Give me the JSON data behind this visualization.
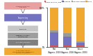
{
  "bars": [
    "Past\n(Approx. 2010)",
    "Now\n(Approx. 2016)",
    "Future\n(Approx. 2030)"
  ],
  "segments": {
    "Sample collection / Prep": {
      "values": [
        5,
        5,
        5
      ],
      "color": "#d9534f"
    },
    "Sequencing": {
      "values": [
        32,
        22,
        5
      ],
      "color": "#7272c0"
    },
    "Data management": {
      "values": [
        5,
        8,
        5
      ],
      "color": "#999999"
    },
    "Analysis": {
      "values": [
        58,
        65,
        85
      ],
      "color": "#f0a830"
    }
  },
  "ylim": [
    0,
    100
  ],
  "ytick_top": "100%",
  "ytick_bot": "0%",
  "legend_labels": [
    "Sample collection / Prep",
    "Sequencing",
    "Data management",
    "Analysis"
  ],
  "legend_colors": [
    "#d9534f",
    "#7272c0",
    "#999999",
    "#f0a830"
  ],
  "background_color": "#ffffff",
  "bar_width": 0.6,
  "flowchart": {
    "top_box": {
      "color": "#e8a0a0",
      "label": "Sample collection\nand Prep"
    },
    "seq_box": {
      "color": "#7272c0",
      "label": "Sequencing"
    },
    "gray_boxes": [
      {
        "label": "Raw reads",
        "gray": 0.78
      },
      {
        "label": "Mapping / Assembly\nVariant calling",
        "gray": 0.62
      },
      {
        "label": "Functional annotation",
        "gray": 0.5
      }
    ],
    "bottom_box": {
      "color": "#f0a830",
      "label": "Downstream analysis\nStatistical analysis, comparative\nanalysis, visualization"
    }
  }
}
